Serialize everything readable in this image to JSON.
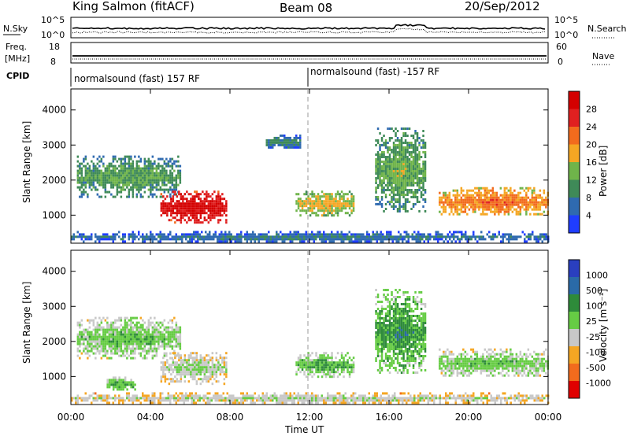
{
  "header": {
    "station": "King Salmon (fitACF)",
    "beam": "Beam 08",
    "date": "20/Sep/2012"
  },
  "sky_panel": {
    "left_label": "N.Sky",
    "left_ticks": [
      "10^5",
      "10^0"
    ],
    "right_label": "N.Search",
    "right_ticks": [
      "10^5",
      "10^0"
    ]
  },
  "freq_panel": {
    "left_label_line1": "Freq.",
    "left_label_line2": "[MHz]",
    "left_ticks": [
      "18",
      "8"
    ],
    "right_label": "Nave",
    "right_ticks": [
      "60",
      "0"
    ]
  },
  "cpid_panel": {
    "label": "CPID",
    "segments": [
      "normalsound (fast) 157 RF",
      "normalsound (fast) -157 RF"
    ]
  },
  "time_axis": {
    "label": "Time UT",
    "ticks": [
      "00:00",
      "04:00",
      "08:00",
      "12:00",
      "16:00",
      "20:00",
      "00:00"
    ]
  },
  "power_panel": {
    "ylabel": "Slant Range [km]",
    "yticks": [
      "4000",
      "3000",
      "2000",
      "1000"
    ],
    "colorbar_label": "Power [dB]",
    "colorbar_ticks": [
      "28",
      "24",
      "20",
      "16",
      "12",
      "8",
      "4"
    ]
  },
  "velocity_panel": {
    "ylabel": "Slant Range [km]",
    "yticks": [
      "4000",
      "3000",
      "2000",
      "1000"
    ],
    "colorbar_label": "Velocity [m s⁻¹]",
    "colorbar_ticks": [
      "1000",
      "500",
      "100",
      "25",
      "-25",
      "-100",
      "-500",
      "-1000"
    ]
  },
  "colors": {
    "power_scale": [
      "#1f3dff",
      "#2f6ab0",
      "#3f8a58",
      "#6fb44a",
      "#f5a623",
      "#f26b1d",
      "#e02020",
      "#d40000"
    ],
    "velocity_scale": [
      "#e00000",
      "#f26b1d",
      "#f5a623",
      "#c8c8c8",
      "#66cc44",
      "#2e8b3a",
      "#2a6aa8",
      "#2a3fbf"
    ]
  },
  "chart_data": {
    "type": "heatmap",
    "title": "King Salmon (fitACF) Beam 08 20/Sep/2012",
    "xlabel": "Time UT",
    "ylabel": "Slant Range [km]",
    "xlim": [
      0,
      24
    ],
    "ylim": [
      200,
      4600
    ],
    "x_ticks": [
      "00:00",
      "04:00",
      "08:00",
      "12:00",
      "16:00",
      "20:00",
      "00:00"
    ],
    "y_ticks": [
      1000,
      2000,
      3000,
      4000
    ],
    "series": [
      {
        "name": "Power [dB]",
        "clim": [
          0,
          30
        ],
        "regions": [
          {
            "t0": 0.3,
            "t1": 5.5,
            "r0": 1500,
            "r1": 2700,
            "value": 9
          },
          {
            "t0": 4.5,
            "t1": 7.8,
            "r0": 800,
            "r1": 1700,
            "value": 26
          },
          {
            "t0": 9.8,
            "t1": 11.5,
            "r0": 2900,
            "r1": 3300,
            "value": 6
          },
          {
            "t0": 11.3,
            "t1": 14.2,
            "r0": 1000,
            "r1": 1700,
            "value": 14
          },
          {
            "t0": 15.3,
            "t1": 17.8,
            "r0": 1100,
            "r1": 3500,
            "value": 10
          },
          {
            "t0": 18.5,
            "t1": 24,
            "r0": 1000,
            "r1": 1800,
            "value": 18
          },
          {
            "t0": 0,
            "t1": 24,
            "r0": 250,
            "r1": 550,
            "value": 5
          }
        ]
      },
      {
        "name": "Velocity [m s⁻¹]",
        "clim": [
          -1000,
          1000
        ],
        "regions": [
          {
            "t0": 0.3,
            "t1": 5.5,
            "r0": 1500,
            "r1": 2700,
            "value": 0
          },
          {
            "t0": 4.5,
            "t1": 7.8,
            "r0": 800,
            "r1": 1700,
            "value": -150
          },
          {
            "t0": 1.8,
            "t1": 3.2,
            "r0": 600,
            "r1": 1000,
            "value": 80
          },
          {
            "t0": 11.3,
            "t1": 14.2,
            "r0": 1000,
            "r1": 1700,
            "value": 90
          },
          {
            "t0": 15.3,
            "t1": 17.8,
            "r0": 1100,
            "r1": 3500,
            "value": 200
          },
          {
            "t0": 18.5,
            "t1": 24,
            "r0": 1000,
            "r1": 1800,
            "value": 0
          },
          {
            "t0": 0,
            "t1": 24,
            "r0": 250,
            "r1": 550,
            "value": -200
          }
        ]
      }
    ]
  }
}
